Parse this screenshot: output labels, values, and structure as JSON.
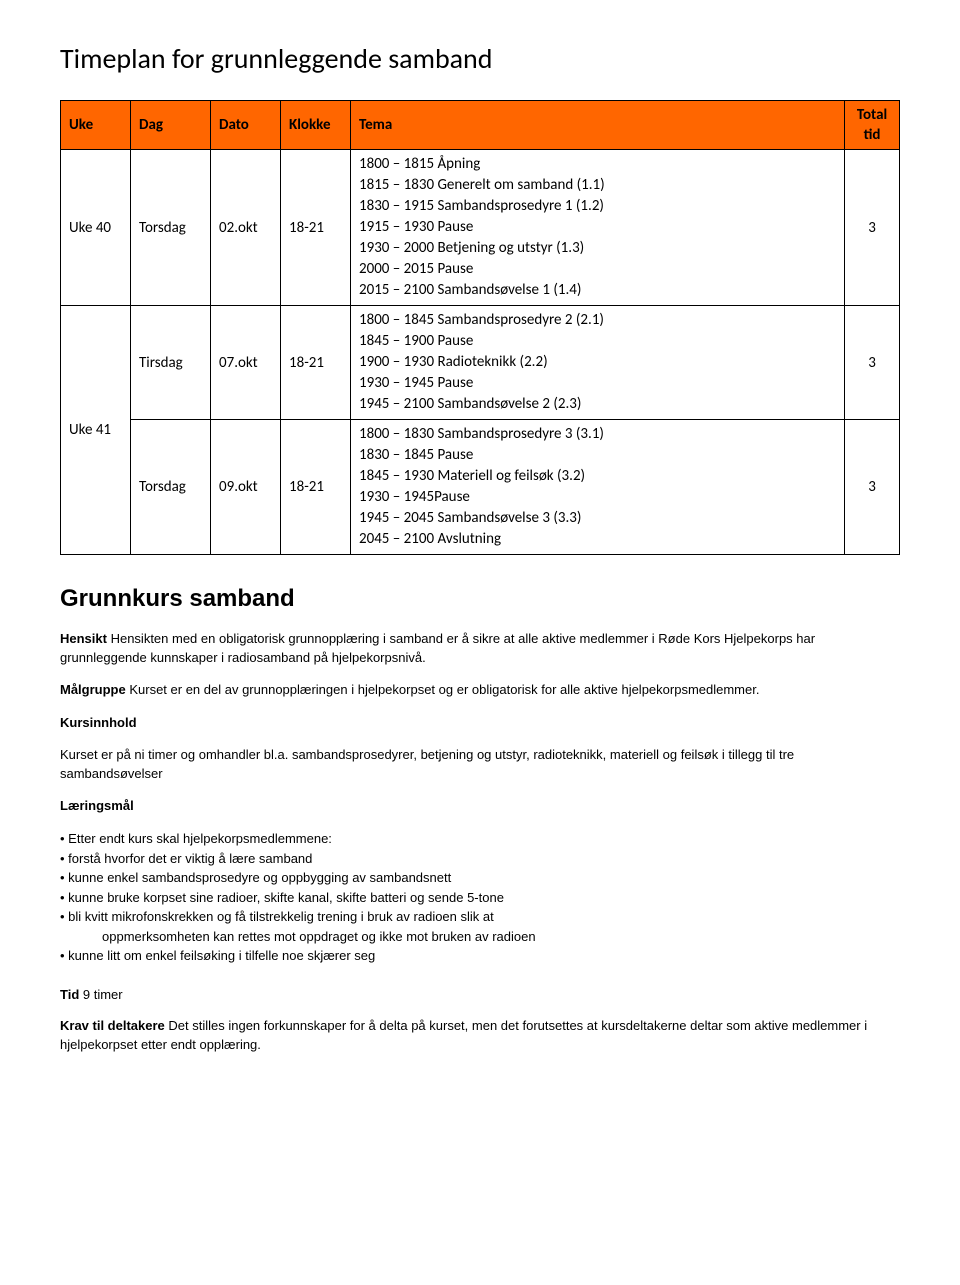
{
  "title": "Timeplan for grunnleggende samband",
  "table": {
    "header_bg": "#ff6600",
    "columns": [
      "Uke",
      "Dag",
      "Dato",
      "Klokke",
      "Tema",
      "Total tid"
    ],
    "rows": [
      {
        "uke": "Uke 40",
        "dag": "Torsdag",
        "dato": "02.okt",
        "klokke": "18-21",
        "tema": "1800 – 1815 Åpning\n1815 – 1830 Generelt om samband (1.1)\n1830 – 1915 Sambandsprosedyre 1 (1.2)\n1915 – 1930 Pause\n1930 – 2000 Betjening og utstyr (1.3)\n2000 – 2015 Pause\n2015 – 2100 Sambandsøvelse 1 (1.4)",
        "total": "3"
      },
      {
        "uke": "Uke 41",
        "uke_rowspan": 2,
        "dag": "Tirsdag",
        "dato": "07.okt",
        "klokke": "18-21",
        "tema": "1800 – 1845 Sambandsprosedyre 2 (2.1)\n1845 – 1900 Pause\n1900 – 1930 Radioteknikk (2.2)\n1930 – 1945 Pause\n1945 – 2100 Sambandsøvelse 2 (2.3)",
        "total": "3"
      },
      {
        "dag": "Torsdag",
        "dato": "09.okt",
        "klokke": "18-21",
        "tema": "1800 – 1830 Sambandsprosedyre 3 (3.1)\n1830 – 1845 Pause\n1845 – 1930 Materiell og feilsøk (3.2)\n1930 – 1945Pause\n1945 – 2045 Sambandsøvelse 3 (3.3)\n2045 – 2100 Avslutning",
        "total": "3"
      }
    ]
  },
  "section": {
    "heading": "Grunnkurs samband",
    "hensikt_label": "Hensikt",
    "hensikt_text": " Hensikten med en obligatorisk grunnopplæring i samband er å sikre at alle aktive medlemmer i Røde Kors Hjelpekorps har grunnleggende kunnskaper i radiosamband på hjelpekorpsnivå.",
    "malgruppe_label": "Målgruppe",
    "malgruppe_text": " Kurset er en del av grunnopplæringen i hjelpekorpset og er obligatorisk for alle aktive hjelpekorpsmedlemmer.",
    "kursinnhold_label": "Kursinnhold",
    "kursinnhold_text": "Kurset er på ni timer og omhandler bl.a. sambandsprosedyrer, betjening og utstyr, radioteknikk, materiell og feilsøk i tillegg til tre sambandsøvelser",
    "laeringsmal_label": "Læringsmål",
    "goals": [
      "Etter endt kurs skal hjelpekorpsmedlemmene:",
      "forstå hvorfor det er viktig å lære samband",
      "kunne enkel sambandsprosedyre og oppbygging av sambandsnett",
      "kunne bruke korpset sine radioer, skifte kanal, skifte batteri og sende 5-tone",
      "bli kvitt mikrofonskrekken og få tilstrekkelig trening i bruk av radioen slik at"
    ],
    "goal_indent": "oppmerksomheten kan rettes mot oppdraget og ikke mot bruken av radioen",
    "goal_last": "kunne litt om enkel feilsøking i tilfelle noe skjærer seg",
    "tid_label": "Tid",
    "tid_value": " 9 timer",
    "krav_label": "Krav til deltakere",
    "krav_text": " Det stilles ingen forkunnskaper for å delta på kurset, men det forutsettes at kursdeltakerne deltar som aktive medlemmer i hjelpekorpset etter endt opplæring."
  }
}
